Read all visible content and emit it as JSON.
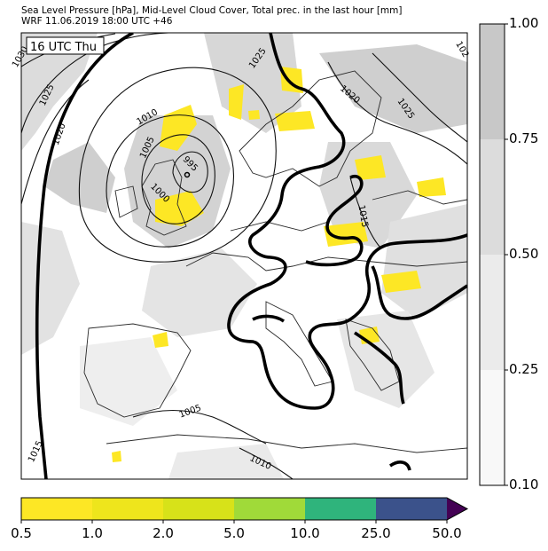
{
  "header": {
    "line1": "Sea Level Pressure [hPa], Mid-Level Cloud Cover, Total prec. in the last hour [mm]",
    "line2": "WRF 11.06.2019 18:00 UTC +46"
  },
  "map": {
    "valid_label": "16 UTC Thu",
    "isobar_labels": [
      "1030",
      "1025",
      "1020",
      "1010",
      "1005",
      "1000",
      "995",
      "1025",
      "1020",
      "1025",
      "1015",
      "1005",
      "1015",
      "1010",
      "102"
    ]
  },
  "cloud_colorbar": {
    "ticks": [
      "1.00",
      "0.75",
      "0.50",
      "0.25",
      "0.10"
    ],
    "colors": [
      "#c8c8c8",
      "#dcdcdc",
      "#ebebeb",
      "#f8f8f8"
    ]
  },
  "precip_colorbar": {
    "ticks": [
      "0.5",
      "1.0",
      "2.0",
      "5.0",
      "10.0",
      "25.0",
      "50.0"
    ],
    "colors": [
      "#fde725",
      "#eee51c",
      "#d7e219",
      "#a0da39",
      "#2fb47c",
      "#3b528b",
      "#440154"
    ]
  }
}
